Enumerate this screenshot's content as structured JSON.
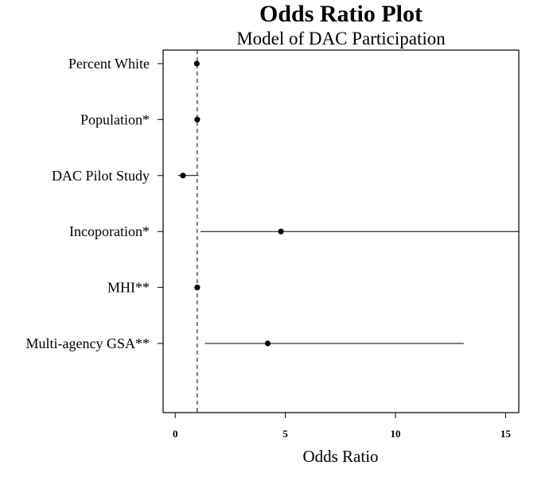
{
  "chart_data": {
    "type": "scatter",
    "subtype": "forest / odds ratio plot with confidence intervals",
    "title": "Odds Ratio Plot",
    "subtitle": "Model of DAC Participation",
    "xlabel": "Odds Ratio",
    "ylabel": "",
    "xlim": [
      -0.55,
      15.6
    ],
    "xticks": [
      0,
      5,
      10,
      15
    ],
    "reference_line": {
      "x": 1,
      "style": "dashed"
    },
    "grid": false,
    "legend": "none",
    "categories": [
      "Percent White",
      "Population*",
      "DAC Pilot Study",
      "Incoporation*",
      "MHI**",
      "Multi-agency GSA**"
    ],
    "points": [
      {
        "label": "Percent White",
        "or": 0.98,
        "low": 0.96,
        "high": 1.0
      },
      {
        "label": "Population*",
        "or": 1.0,
        "low": 1.0,
        "high": 1.0
      },
      {
        "label": "DAC Pilot Study",
        "or": 0.35,
        "low": 0.12,
        "high": 1.05
      },
      {
        "label": "Incoporation*",
        "or": 4.8,
        "low": 1.15,
        "high": 15.6
      },
      {
        "label": "MHI**",
        "or": 1.0,
        "low": 1.0,
        "high": 1.0
      },
      {
        "label": "Multi-agency GSA**",
        "or": 4.2,
        "low": 1.35,
        "high": 13.1
      }
    ]
  }
}
